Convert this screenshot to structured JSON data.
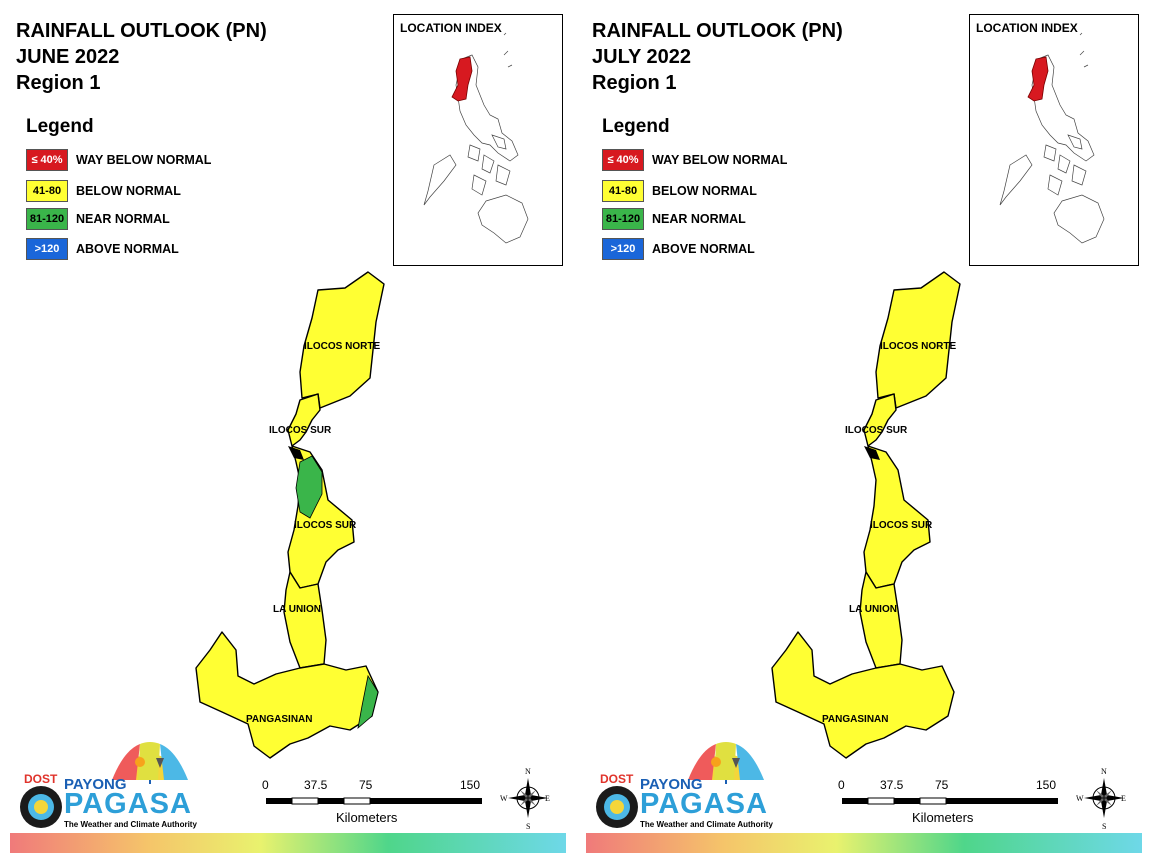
{
  "panels": [
    {
      "title_line1": "RAINFALL OUTLOOK (PN)",
      "title_line2": "JUNE 2022",
      "title_line3": "Region 1",
      "legend_title": "Legend",
      "legend": [
        {
          "code": "≤ 40%",
          "label": "WAY BELOW NORMAL",
          "color": "#d71920",
          "text_color": "#ffffff"
        },
        {
          "code": "41-80",
          "label": "BELOW NORMAL",
          "color": "#ffff33",
          "text_color": "#000000"
        },
        {
          "code": "81-120",
          "label": "NEAR NORMAL",
          "color": "#3ab54a",
          "text_color": "#000000"
        },
        {
          "code": ">120",
          "label": "ABOVE NORMAL",
          "color": "#1a66d9",
          "text_color": "#ffffff"
        }
      ],
      "inset_title": "LOCATION INDEX",
      "provinces": {
        "ilocos_norte": "ILOCOS NORTE",
        "ilocos_sur_north": "ILOCOS SUR",
        "ilocos_sur_south": "ILOCOS SUR",
        "la_union": "LA UNION",
        "pangasinan": "PANGASINAN"
      },
      "near_normal_areas": true,
      "scale": {
        "t0": "0",
        "t1": "37.5",
        "t2": "75",
        "t3": "150",
        "unit": "Kilometers"
      },
      "compass": {
        "n": "N",
        "s": "S",
        "e": "E",
        "w": "W"
      },
      "logo": {
        "dost": "DOST",
        "payong": "PAYONG",
        "pagasa": "PAGASA",
        "tagline": "The Weather and Climate Authority"
      }
    },
    {
      "title_line1": "RAINFALL OUTLOOK (PN)",
      "title_line2": "JULY 2022",
      "title_line3": "Region 1",
      "legend_title": "Legend",
      "legend": [
        {
          "code": "≤ 40%",
          "label": "WAY BELOW NORMAL",
          "color": "#d71920",
          "text_color": "#ffffff"
        },
        {
          "code": "41-80",
          "label": "BELOW NORMAL",
          "color": "#ffff33",
          "text_color": "#000000"
        },
        {
          "code": "81-120",
          "label": "NEAR NORMAL",
          "color": "#3ab54a",
          "text_color": "#000000"
        },
        {
          "code": ">120",
          "label": "ABOVE NORMAL",
          "color": "#1a66d9",
          "text_color": "#ffffff"
        }
      ],
      "inset_title": "LOCATION INDEX",
      "provinces": {
        "ilocos_norte": "ILOCOS NORTE",
        "ilocos_sur_north": "ILOCOS SUR",
        "ilocos_sur_south": "ILOCOS SUR",
        "la_union": "LA UNION",
        "pangasinan": "PANGASINAN"
      },
      "near_normal_areas": false,
      "scale": {
        "t0": "0",
        "t1": "37.5",
        "t2": "75",
        "t3": "150",
        "unit": "Kilometers"
      },
      "compass": {
        "n": "N",
        "s": "S",
        "e": "E",
        "w": "W"
      },
      "logo": {
        "dost": "DOST",
        "payong": "PAYONG",
        "pagasa": "PAGASA",
        "tagline": "The Weather and Climate Authority"
      }
    }
  ],
  "colors": {
    "region_fill": "#ffff33",
    "near_normal_fill": "#3ab54a",
    "highlight": "#d71920"
  }
}
